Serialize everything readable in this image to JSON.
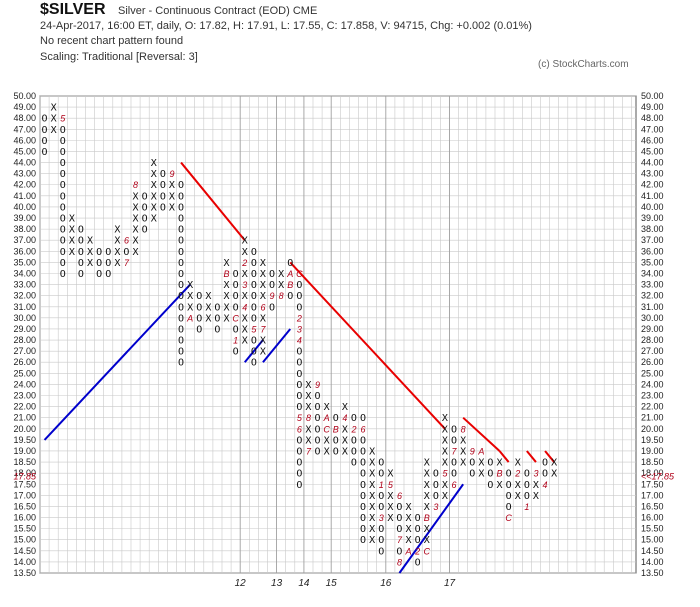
{
  "header": {
    "symbol": "$SILVER",
    "contract": "Silver - Continuous Contract (EOD)  CME",
    "ohlc": "24-Apr-2017, 16:00 ET, daily, O: 17.82, H: 17.91, L: 17.55, C: 17.858, V: 94715, Chg: +0.002 (0.01%)",
    "pattern": "No recent chart pattern found",
    "scaling": "Scaling: Traditional [Reversal: 3]",
    "copyright": "(c) StockCharts.com"
  },
  "chart_data": {
    "type": "point-and-figure",
    "box_size": 0.5,
    "reversal": 3,
    "scaling": "Traditional",
    "ylim": [
      13.5,
      50.0
    ],
    "y_ticks": [
      13.5,
      14.0,
      14.5,
      15.0,
      15.5,
      16.0,
      16.5,
      17.0,
      17.5,
      18.0,
      18.5,
      19.0,
      19.5,
      20.0,
      21.0,
      22.0,
      23.0,
      24.0,
      25.0,
      26.0,
      27.0,
      28.0,
      29.0,
      30.0,
      31.0,
      32.0,
      33.0,
      34.0,
      35.0,
      36.0,
      37.0,
      38.0,
      39.0,
      40.0,
      41.0,
      42.0,
      43.0,
      44.0,
      45.0,
      46.0,
      47.0,
      48.0,
      49.0,
      50.0
    ],
    "y_tick_labels": [
      "13.50",
      "14.00",
      "14.50",
      "15.00",
      "15.50",
      "16.00",
      "16.50",
      "17.00",
      "17.50",
      "18.00",
      "18.50",
      "19.00",
      "19.50",
      "20.00",
      "21.00",
      "22.00",
      "23.00",
      "24.00",
      "25.00",
      "26.00",
      "27.00",
      "28.00",
      "29.00",
      "30.00",
      "31.00",
      "32.00",
      "33.00",
      "34.00",
      "35.00",
      "36.00",
      "37.00",
      "38.00",
      "39.00",
      "40.00",
      "41.00",
      "42.00",
      "43.00",
      "44.00",
      "45.00",
      "46.00",
      "47.00",
      "48.00",
      "49.00",
      "50.00"
    ],
    "year_labels": [
      {
        "text": "12",
        "col": 22
      },
      {
        "text": "13",
        "col": 26
      },
      {
        "text": "14",
        "col": 29
      },
      {
        "text": "15",
        "col": 32
      },
      {
        "text": "16",
        "col": 38
      },
      {
        "text": "17",
        "col": 45
      }
    ],
    "current_price": 17.85,
    "current_price_label": "17.85",
    "current_price_arrow": "<<",
    "columns": [
      {
        "type": "O",
        "high": 48.0,
        "low": 45.0,
        "months": []
      },
      {
        "type": "X",
        "high": 49.0,
        "low": 47.0,
        "months": []
      },
      {
        "type": "O",
        "high": 48.0,
        "low": 34.0,
        "months": [
          {
            "price": 48.0,
            "label": "5"
          }
        ]
      },
      {
        "type": "X",
        "high": 39.0,
        "low": 36.0,
        "months": []
      },
      {
        "type": "O",
        "high": 38.0,
        "low": 34.0,
        "months": []
      },
      {
        "type": "X",
        "high": 37.0,
        "low": 35.0,
        "months": []
      },
      {
        "type": "O",
        "high": 36.0,
        "low": 34.0,
        "months": []
      },
      {
        "type": "O",
        "high": 36.0,
        "low": 34.0,
        "months": []
      },
      {
        "type": "X",
        "high": 38.0,
        "low": 35.0,
        "months": []
      },
      {
        "type": "O",
        "high": 37.0,
        "low": 35.0,
        "months": [
          {
            "price": 37.0,
            "label": "6"
          },
          {
            "price": 35.0,
            "label": "7"
          }
        ]
      },
      {
        "type": "X",
        "high": 42.0,
        "low": 36.0,
        "months": [
          {
            "price": 42.0,
            "label": "8"
          }
        ]
      },
      {
        "type": "O",
        "high": 41.0,
        "low": 38.0,
        "months": []
      },
      {
        "type": "X",
        "high": 44.0,
        "low": 39.0,
        "months": []
      },
      {
        "type": "O",
        "high": 43.0,
        "low": 40.0,
        "months": []
      },
      {
        "type": "X",
        "high": 43.0,
        "low": 40.0,
        "months": [
          {
            "price": 43.0,
            "label": "9"
          }
        ]
      },
      {
        "type": "O",
        "high": 42.0,
        "low": 26.0,
        "months": []
      },
      {
        "type": "X",
        "high": 33.0,
        "low": 30.0,
        "months": [
          {
            "price": 30.0,
            "label": "A"
          }
        ]
      },
      {
        "type": "O",
        "high": 32.0,
        "low": 29.0,
        "months": []
      },
      {
        "type": "X",
        "high": 32.0,
        "low": 30.0,
        "months": []
      },
      {
        "type": "O",
        "high": 31.0,
        "low": 29.0,
        "months": []
      },
      {
        "type": "X",
        "high": 35.0,
        "low": 30.0,
        "months": [
          {
            "price": 34.0,
            "label": "B"
          }
        ]
      },
      {
        "type": "O",
        "high": 34.0,
        "low": 27.0,
        "months": [
          {
            "price": 30.0,
            "label": "C"
          },
          {
            "price": 28.0,
            "label": "1"
          }
        ]
      },
      {
        "type": "X",
        "high": 37.0,
        "low": 28.0,
        "months": [
          {
            "price": 35.0,
            "label": "2"
          },
          {
            "price": 33.0,
            "label": "3"
          },
          {
            "price": 31.0,
            "label": "4"
          }
        ]
      },
      {
        "type": "O",
        "high": 36.0,
        "low": 26.0,
        "months": [
          {
            "price": 29.0,
            "label": "5"
          }
        ]
      },
      {
        "type": "X",
        "high": 35.0,
        "low": 27.0,
        "months": [
          {
            "price": 31.0,
            "label": "6"
          },
          {
            "price": 29.0,
            "label": "7"
          }
        ]
      },
      {
        "type": "O",
        "high": 34.0,
        "low": 31.0,
        "months": [
          {
            "price": 32.0,
            "label": "9"
          }
        ]
      },
      {
        "type": "X",
        "high": 34.0,
        "low": 32.0,
        "months": [
          {
            "price": 32.0,
            "label": "8"
          }
        ]
      },
      {
        "type": "O",
        "high": 35.0,
        "low": 32.0,
        "months": [
          {
            "price": 34.0,
            "label": "A"
          },
          {
            "price": 33.0,
            "label": "B"
          }
        ]
      },
      {
        "type": "O",
        "high": 34.0,
        "low": 17.5,
        "months": [
          {
            "price": 34.0,
            "label": "C"
          },
          {
            "price": 30.0,
            "label": "2"
          },
          {
            "price": 29.0,
            "label": "3"
          },
          {
            "price": 28.0,
            "label": "4"
          },
          {
            "price": 21.0,
            "label": "5"
          },
          {
            "price": 20.0,
            "label": "6"
          }
        ]
      },
      {
        "type": "X",
        "high": 24.0,
        "low": 19.0,
        "months": [
          {
            "price": 21.0,
            "label": "8"
          },
          {
            "price": 19.0,
            "label": "7"
          }
        ]
      },
      {
        "type": "O",
        "high": 24.0,
        "low": 19.0,
        "months": [
          {
            "price": 24.0,
            "label": "9"
          }
        ]
      },
      {
        "type": "X",
        "high": 22.0,
        "low": 19.0,
        "months": [
          {
            "price": 21.0,
            "label": "A"
          },
          {
            "price": 20.0,
            "label": "C"
          }
        ]
      },
      {
        "type": "O",
        "high": 21.0,
        "low": 19.0,
        "months": [
          {
            "price": 20.0,
            "label": "B"
          }
        ]
      },
      {
        "type": "X",
        "high": 22.0,
        "low": 19.0,
        "months": [
          {
            "price": 21.0,
            "label": "4"
          }
        ]
      },
      {
        "type": "O",
        "high": 21.0,
        "low": 18.5,
        "months": [
          {
            "price": 20.0,
            "label": "2"
          }
        ]
      },
      {
        "type": "O",
        "high": 21.0,
        "low": 15.0,
        "months": [
          {
            "price": 20.0,
            "label": "6"
          }
        ]
      },
      {
        "type": "X",
        "high": 19.0,
        "low": 15.0,
        "months": []
      },
      {
        "type": "O",
        "high": 18.5,
        "low": 14.5,
        "months": [
          {
            "price": 17.5,
            "label": "1"
          },
          {
            "price": 16.0,
            "label": "3"
          }
        ]
      },
      {
        "type": "X",
        "high": 18.0,
        "low": 16.0,
        "months": [
          {
            "price": 17.5,
            "label": "5"
          },
          {
            "price": 15.5,
            "label": "2"
          }
        ]
      },
      {
        "type": "O",
        "high": 17.0,
        "low": 14.0,
        "months": [
          {
            "price": 17.0,
            "label": "6"
          },
          {
            "price": 15.0,
            "label": "7"
          },
          {
            "price": 14.0,
            "label": "8"
          }
        ]
      },
      {
        "type": "X",
        "high": 16.5,
        "low": 14.5,
        "months": [
          {
            "price": 14.5,
            "label": "A"
          }
        ]
      },
      {
        "type": "O",
        "high": 16.0,
        "low": 14.0,
        "months": [
          {
            "price": 14.5,
            "label": "2"
          }
        ]
      },
      {
        "type": "X",
        "high": 18.5,
        "low": 14.5,
        "months": [
          {
            "price": 16.0,
            "label": "B"
          },
          {
            "price": 14.5,
            "label": "C"
          }
        ]
      },
      {
        "type": "O",
        "high": 18.0,
        "low": 16.5,
        "months": [
          {
            "price": 16.5,
            "label": "3"
          }
        ]
      },
      {
        "type": "X",
        "high": 21.0,
        "low": 17.0,
        "months": [
          {
            "price": 18.0,
            "label": "5"
          }
        ]
      },
      {
        "type": "O",
        "high": 20.0,
        "low": 17.5,
        "months": [
          {
            "price": 19.0,
            "label": "7"
          },
          {
            "price": 17.5,
            "label": "6"
          }
        ]
      },
      {
        "type": "X",
        "high": 20.0,
        "low": 18.5,
        "months": [
          {
            "price": 20.0,
            "label": "8"
          }
        ]
      },
      {
        "type": "O",
        "high": 19.0,
        "low": 18.0,
        "months": [
          {
            "price": 19.0,
            "label": "9"
          }
        ]
      },
      {
        "type": "X",
        "high": 19.0,
        "low": 18.0,
        "months": [
          {
            "price": 19.0,
            "label": "A"
          }
        ]
      },
      {
        "type": "O",
        "high": 18.5,
        "low": 17.5,
        "months": []
      },
      {
        "type": "X",
        "high": 18.5,
        "low": 17.5,
        "months": [
          {
            "price": 18.0,
            "label": "B"
          }
        ]
      },
      {
        "type": "O",
        "high": 18.0,
        "low": 16.0,
        "months": [
          {
            "price": 16.0,
            "label": "C"
          }
        ]
      },
      {
        "type": "X",
        "high": 18.5,
        "low": 17.0,
        "months": [
          {
            "price": 18.0,
            "label": "2"
          }
        ]
      },
      {
        "type": "O",
        "high": 18.0,
        "low": 16.5,
        "months": [
          {
            "price": 16.5,
            "label": "1"
          }
        ]
      },
      {
        "type": "X",
        "high": 18.0,
        "low": 17.0,
        "months": [
          {
            "price": 18.0,
            "label": "3"
          }
        ]
      },
      {
        "type": "O",
        "high": 18.5,
        "low": 17.5,
        "months": [
          {
            "price": 17.5,
            "label": "4"
          }
        ]
      },
      {
        "type": "X",
        "high": 18.5,
        "low": 18.0,
        "months": []
      }
    ],
    "trendlines": [
      {
        "color": "#e80000",
        "from": {
          "col": 15,
          "price": 44.0
        },
        "to": {
          "col": 22,
          "price": 37.0
        }
      },
      {
        "color": "#e80000",
        "from": {
          "col": 27,
          "price": 35.0
        },
        "to": {
          "col": 44,
          "price": 20.0
        }
      },
      {
        "color": "#e80000",
        "from": {
          "col": 46,
          "price": 21.0
        },
        "to": {
          "col": 50,
          "price": 19.0
        }
      },
      {
        "color": "#e80000",
        "from": {
          "col": 50,
          "price": 19.0
        },
        "to": {
          "col": 51,
          "price": 18.5
        }
      },
      {
        "color": "#e80000",
        "from": {
          "col": 53,
          "price": 19.0
        },
        "to": {
          "col": 54,
          "price": 18.5
        }
      },
      {
        "color": "#e80000",
        "from": {
          "col": 55,
          "price": 19.0
        },
        "to": {
          "col": 56,
          "price": 18.5
        }
      },
      {
        "color": "#0000cc",
        "from": {
          "col": 0,
          "price": 19.5
        },
        "to": {
          "col": 16,
          "price": 33.0
        }
      },
      {
        "color": "#0000cc",
        "from": {
          "col": 22,
          "price": 26.0
        },
        "to": {
          "col": 24,
          "price": 28.0
        }
      },
      {
        "color": "#0000cc",
        "from": {
          "col": 24,
          "price": 26.0
        },
        "to": {
          "col": 27,
          "price": 29.0
        }
      },
      {
        "color": "#0000cc",
        "from": {
          "col": 39,
          "price": 13.5
        },
        "to": {
          "col": 46,
          "price": 17.5
        }
      }
    ]
  }
}
